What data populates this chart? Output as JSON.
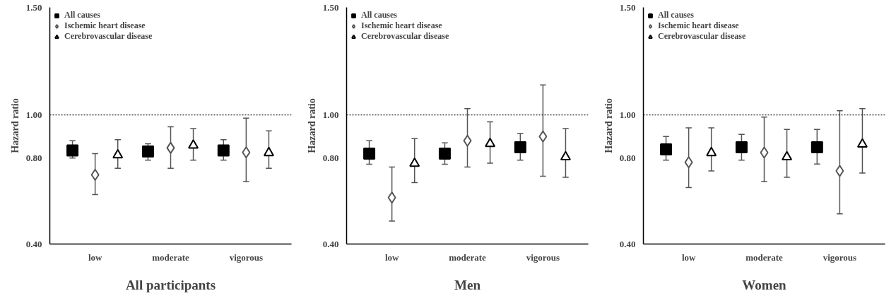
{
  "chart_data": [
    {
      "type": "scatter",
      "xlabel": "All participants",
      "ylabel": "Hazard ratio",
      "categories": [
        "low",
        "moderate",
        "vigorous"
      ],
      "ylim": [
        0.4,
        1.5
      ],
      "yticks": [
        {
          "value": 0.4,
          "label": "0.40"
        },
        {
          "value": 0.8,
          "label": "0.80"
        },
        {
          "value": 1.0,
          "label": "1.00"
        },
        {
          "value": 1.5,
          "label": "1.50"
        }
      ],
      "grid": false,
      "legend": "top left",
      "ref_lines": [
        {
          "axis": "y",
          "value": 1.0,
          "line_style": "dotted",
          "color": "#000000"
        }
      ],
      "series": [
        {
          "name": "All causes",
          "color": "#000000",
          "marker": "square",
          "values": [
            0.835,
            0.83,
            0.835
          ],
          "errors": [
            [
              0.8,
              0.88
            ],
            [
              0.79,
              0.866
            ],
            [
              0.79,
              0.885
            ]
          ]
        },
        {
          "name": "Ischemic heart disease",
          "color": "#555555",
          "marker": "diamond",
          "values": [
            0.722,
            0.847,
            0.826
          ],
          "errors": [
            [
              0.63,
              0.82
            ],
            [
              0.752,
              0.945
            ],
            [
              0.69,
              0.985
            ]
          ]
        },
        {
          "name": "Cerebrovascular disease",
          "color": "#000000",
          "marker": "triangle",
          "values": [
            0.814,
            0.859,
            0.824
          ],
          "errors": [
            [
              0.752,
              0.885
            ],
            [
              0.79,
              0.937
            ],
            [
              0.752,
              0.926
            ]
          ]
        }
      ]
    },
    {
      "type": "scatter",
      "xlabel": "Men",
      "ylabel": "Hazard ratio",
      "categories": [
        "low",
        "moderate",
        "vigorous"
      ],
      "ylim": [
        0.4,
        1.5
      ],
      "yticks": [
        {
          "value": 0.4,
          "label": "0.40"
        },
        {
          "value": 0.8,
          "label": "0.80"
        },
        {
          "value": 1.0,
          "label": "1.00"
        },
        {
          "value": 1.5,
          "label": "1.50"
        }
      ],
      "grid": false,
      "legend": "top left",
      "ref_lines": [
        {
          "axis": "y",
          "value": 1.0,
          "line_style": "dotted",
          "color": "#000000"
        }
      ],
      "series": [
        {
          "name": "All causes",
          "color": "#000000",
          "marker": "square",
          "values": [
            0.82,
            0.82,
            0.85
          ],
          "errors": [
            [
              0.771,
              0.88
            ],
            [
              0.771,
              0.87
            ],
            [
              0.79,
              0.914
            ]
          ]
        },
        {
          "name": "Ischemic heart disease",
          "color": "#555555",
          "marker": "diamond",
          "values": [
            0.616,
            0.88,
            0.9
          ],
          "errors": [
            [
              0.507,
              0.758
            ],
            [
              0.758,
              1.03
            ],
            [
              0.715,
              1.14
            ]
          ]
        },
        {
          "name": "Cerebrovascular disease",
          "color": "#000000",
          "marker": "triangle",
          "values": [
            0.774,
            0.866,
            0.805
          ],
          "errors": [
            [
              0.686,
              0.89
            ],
            [
              0.776,
              0.968
            ],
            [
              0.71,
              0.937
            ]
          ]
        }
      ]
    },
    {
      "type": "scatter",
      "xlabel": "Women",
      "ylabel": "Hazard ratio",
      "categories": [
        "low",
        "moderate",
        "vigorous"
      ],
      "ylim": [
        0.4,
        1.5
      ],
      "yticks": [
        {
          "value": 0.4,
          "label": "0.40"
        },
        {
          "value": 0.8,
          "label": "0.80"
        },
        {
          "value": 1.0,
          "label": "1.00"
        },
        {
          "value": 1.5,
          "label": "1.50"
        }
      ],
      "grid": false,
      "legend": "top left",
      "ref_lines": [
        {
          "axis": "y",
          "value": 1.0,
          "line_style": "dotted",
          "color": "#000000"
        }
      ],
      "series": [
        {
          "name": "All causes",
          "color": "#000000",
          "marker": "square",
          "values": [
            0.84,
            0.85,
            0.85
          ],
          "errors": [
            [
              0.79,
              0.9
            ],
            [
              0.79,
              0.91
            ],
            [
              0.772,
              0.933
            ]
          ]
        },
        {
          "name": "Ischemic heart disease",
          "color": "#555555",
          "marker": "diamond",
          "values": [
            0.78,
            0.825,
            0.74
          ],
          "errors": [
            [
              0.663,
              0.94
            ],
            [
              0.69,
              0.99
            ],
            [
              0.54,
              1.02
            ]
          ]
        },
        {
          "name": "Cerebrovascular disease",
          "color": "#000000",
          "marker": "triangle",
          "values": [
            0.824,
            0.805,
            0.864
          ],
          "errors": [
            [
              0.74,
              0.94
            ],
            [
              0.71,
              0.933
            ],
            [
              0.73,
              1.03
            ]
          ]
        }
      ]
    }
  ]
}
